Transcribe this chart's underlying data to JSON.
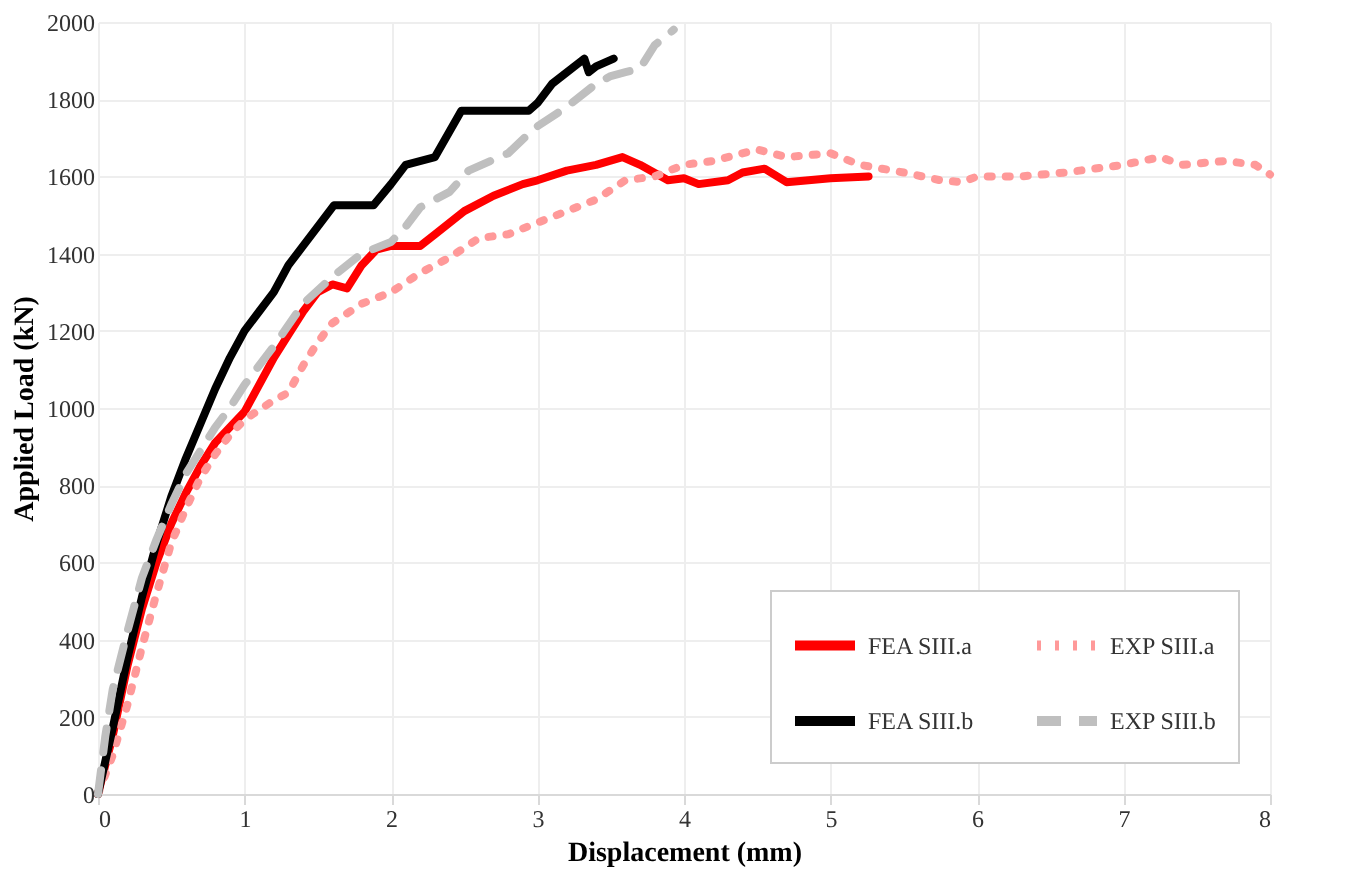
{
  "chart_data": {
    "type": "line",
    "xlabel": "Displacement (mm)",
    "ylabel": "Applied Load (kN)",
    "xlim": [
      0,
      8
    ],
    "xticks": [
      0,
      1,
      2,
      3,
      4,
      5,
      6,
      7,
      8
    ],
    "ylim": [
      0,
      2000
    ],
    "yticks": [
      0,
      200,
      400,
      600,
      800,
      1000,
      1200,
      1400,
      1600,
      1800,
      2000
    ],
    "grid": true,
    "legend": "bottom right",
    "series": [
      {
        "name": "FEA SIII.a",
        "color": "#ff0000",
        "line_style": "solid",
        "x": [
          0,
          0.1,
          0.2,
          0.3,
          0.4,
          0.5,
          0.6,
          0.7,
          0.8,
          0.9,
          1.0,
          1.1,
          1.2,
          1.3,
          1.4,
          1.5,
          1.6,
          1.7,
          1.8,
          1.9,
          2.0,
          2.2,
          2.3,
          2.5,
          2.7,
          2.9,
          3.0,
          3.2,
          3.4,
          3.58,
          3.7,
          3.89,
          4.0,
          4.1,
          4.3,
          4.4,
          4.55,
          4.7,
          5.0,
          5.26
        ],
        "values": [
          0,
          150,
          330,
          480,
          600,
          700,
          780,
          850,
          910,
          950,
          990,
          1060,
          1130,
          1190,
          1250,
          1300,
          1320,
          1310,
          1370,
          1410,
          1420,
          1420,
          1450,
          1510,
          1550,
          1580,
          1590,
          1615,
          1630,
          1650,
          1630,
          1590,
          1595,
          1580,
          1590,
          1610,
          1620,
          1585,
          1595,
          1600
        ]
      },
      {
        "name": "EXP SIII.a",
        "color": "#ff9999",
        "line_style": "dotted",
        "x": [
          0,
          0.1,
          0.2,
          0.3,
          0.4,
          0.5,
          0.6,
          0.7,
          0.8,
          0.9,
          1.0,
          1.2,
          1.3,
          1.4,
          1.5,
          1.6,
          1.8,
          2.0,
          2.2,
          2.4,
          2.6,
          2.8,
          3.0,
          3.2,
          3.4,
          3.6,
          3.8,
          4.0,
          4.2,
          4.5,
          4.7,
          5.0,
          5.2,
          5.5,
          5.75,
          5.9,
          6.0,
          6.3,
          6.6,
          7.0,
          7.25,
          7.4,
          7.7,
          7.9,
          8.0
        ],
        "values": [
          0,
          100,
          230,
          380,
          520,
          650,
          740,
          820,
          880,
          930,
          970,
          1020,
          1040,
          1110,
          1170,
          1220,
          1270,
          1300,
          1350,
          1390,
          1440,
          1450,
          1480,
          1510,
          1540,
          1590,
          1600,
          1630,
          1640,
          1670,
          1650,
          1660,
          1630,
          1610,
          1590,
          1585,
          1600,
          1600,
          1610,
          1630,
          1650,
          1630,
          1640,
          1630,
          1605
        ]
      },
      {
        "name": "FEA SIII.b",
        "color": "#000000",
        "line_style": "solid",
        "x": [
          0,
          0.1,
          0.2,
          0.3,
          0.4,
          0.5,
          0.6,
          0.7,
          0.8,
          0.9,
          1.0,
          1.1,
          1.2,
          1.3,
          1.4,
          1.5,
          1.61,
          1.88,
          2.0,
          2.1,
          2.3,
          2.48,
          2.94,
          3.0,
          3.1,
          3.32,
          3.35,
          3.4,
          3.52
        ],
        "values": [
          0,
          170,
          350,
          510,
          650,
          770,
          870,
          960,
          1050,
          1130,
          1200,
          1250,
          1300,
          1370,
          1420,
          1470,
          1525,
          1525,
          1580,
          1630,
          1650,
          1770,
          1770,
          1790,
          1840,
          1905,
          1870,
          1885,
          1905
        ]
      },
      {
        "name": "EXP SIII.b",
        "color": "#bfbfbf",
        "line_style": "dashed",
        "x": [
          0,
          0.05,
          0.1,
          0.2,
          0.3,
          0.4,
          0.5,
          0.6,
          0.7,
          0.8,
          0.9,
          1.0,
          1.2,
          1.4,
          1.6,
          1.8,
          2.0,
          2.1,
          2.2,
          2.4,
          2.53,
          2.8,
          2.98,
          3.2,
          3.4,
          3.5,
          3.6,
          3.7,
          3.8,
          3.93
        ],
        "values": [
          0,
          150,
          270,
          420,
          560,
          660,
          750,
          830,
          890,
          950,
          1000,
          1060,
          1160,
          1270,
          1340,
          1400,
          1430,
          1470,
          1520,
          1560,
          1615,
          1660,
          1725,
          1780,
          1840,
          1860,
          1870,
          1880,
          1940,
          1980
        ]
      }
    ]
  }
}
